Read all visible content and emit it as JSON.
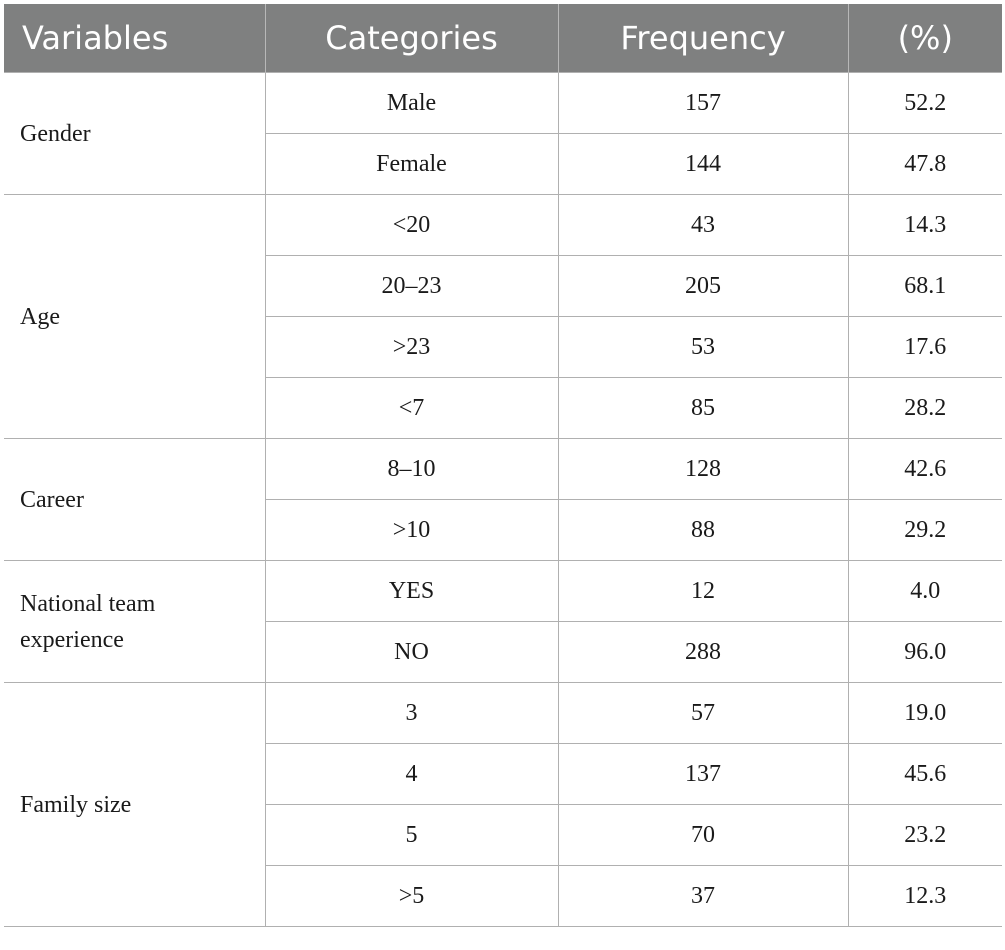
{
  "headers": [
    "Variables",
    "Categories",
    "Frequency",
    "(%)"
  ],
  "groups": [
    {
      "variable": "Gender",
      "rows": [
        {
          "category": "Male",
          "frequency": "157",
          "percent": "52.2"
        },
        {
          "category": "Female",
          "frequency": "144",
          "percent": "47.8"
        }
      ]
    },
    {
      "variable": "Age",
      "rows": [
        {
          "category": "<20",
          "frequency": "43",
          "percent": "14.3"
        },
        {
          "category": "20–23",
          "frequency": "205",
          "percent": "68.1"
        },
        {
          "category": ">23",
          "frequency": "53",
          "percent": "17.6"
        },
        {
          "category": "<7",
          "frequency": "85",
          "percent": "28.2"
        }
      ]
    },
    {
      "variable": "Career",
      "rows": [
        {
          "category": "8–10",
          "frequency": "128",
          "percent": "42.6"
        },
        {
          "category": ">10",
          "frequency": "88",
          "percent": "29.2"
        }
      ]
    },
    {
      "variable": "National team experience",
      "rows": [
        {
          "category": "YES",
          "frequency": "12",
          "percent": "4.0"
        },
        {
          "category": "NO",
          "frequency": "288",
          "percent": "96.0"
        }
      ]
    },
    {
      "variable": "Family size",
      "rows": [
        {
          "category": "3",
          "frequency": "57",
          "percent": "19.0"
        },
        {
          "category": "4",
          "frequency": "137",
          "percent": "45.6"
        },
        {
          "category": "5",
          "frequency": "70",
          "percent": "23.2"
        },
        {
          "category": ">5",
          "frequency": "37",
          "percent": "12.3"
        }
      ]
    }
  ]
}
